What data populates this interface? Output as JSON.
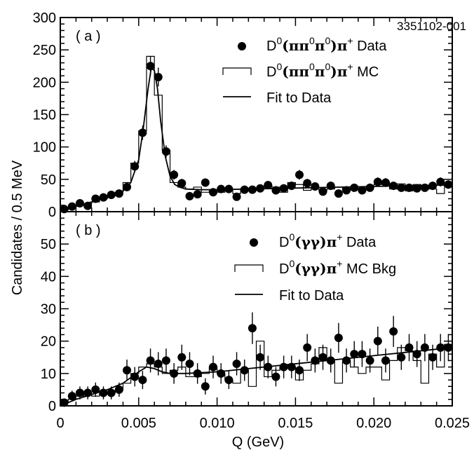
{
  "figure_id": "3351102-001",
  "ylabel": "Candidates / 0.5 MeV",
  "xlabel": "Q (GeV)",
  "x_tick_labels": [
    "0",
    "0.005",
    "0.010",
    "0.015",
    "0.020",
    "0.025"
  ],
  "chart_data": [
    {
      "type": "scatter",
      "panel_label": "( a )",
      "xlim": [
        0,
        0.025
      ],
      "ylim": [
        0,
        300
      ],
      "y_tick_labels": [
        "0",
        "50",
        "100",
        "150",
        "200",
        "250",
        "300"
      ],
      "legend": {
        "data": {
          "prefix": "D",
          "sup": "0",
          "decay": "(ππ",
          "decay2": "π",
          "close": ")π",
          "plus": "+",
          "suffix": " Data"
        },
        "mc": {
          "prefix": "D",
          "sup": "0",
          "decay": "(ππ",
          "decay2": "π",
          "close": ")π",
          "plus": "+",
          "suffix": " MC"
        },
        "fit": "Fit to Data"
      },
      "series": [
        {
          "name": "D0(π0π0)π+ Data",
          "x": [
            0.00025,
            0.00075,
            0.00125,
            0.00175,
            0.00225,
            0.00275,
            0.00325,
            0.00375,
            0.00425,
            0.00475,
            0.00525,
            0.00575,
            0.00625,
            0.00675,
            0.00725,
            0.00775,
            0.00825,
            0.00875,
            0.00925,
            0.00975,
            0.01025,
            0.01075,
            0.01125,
            0.01175,
            0.01225,
            0.01275,
            0.01325,
            0.01375,
            0.01425,
            0.01475,
            0.01525,
            0.01575,
            0.01625,
            0.01675,
            0.01725,
            0.01775,
            0.01825,
            0.01875,
            0.01925,
            0.01975,
            0.02025,
            0.02075,
            0.02125,
            0.02175,
            0.02225,
            0.02275,
            0.02325,
            0.02375,
            0.02425,
            0.02475
          ],
          "y": [
            4,
            8,
            13,
            9,
            20,
            22,
            26,
            28,
            38,
            70,
            122,
            225,
            208,
            93,
            57,
            44,
            24,
            27,
            45,
            30,
            35,
            35,
            23,
            34,
            34,
            36,
            41,
            33,
            36,
            40,
            57,
            44,
            39,
            31,
            40,
            28,
            33,
            37,
            33,
            37,
            46,
            45,
            40,
            37,
            37,
            36,
            37,
            40,
            46,
            42
          ],
          "err": [
            2,
            3,
            4,
            3,
            4.5,
            5,
            5,
            5.5,
            6,
            8.5,
            11,
            15,
            14.5,
            9.5,
            7.5,
            6.5,
            5,
            5,
            6.5,
            5.5,
            6,
            6,
            5,
            6,
            6,
            6,
            6.5,
            6,
            6,
            6.5,
            7.5,
            6.5,
            6,
            5.5,
            6.5,
            5.5,
            6,
            6,
            6,
            6,
            7,
            7,
            6.5,
            6,
            6,
            6,
            6,
            6.5,
            7,
            6.5
          ]
        },
        {
          "name": "D0(π0π0)π+ MC",
          "edges_start": 0.0,
          "bin_width": 0.0005,
          "values": [
            3,
            5,
            10,
            12,
            15,
            20,
            25,
            30,
            45,
            75,
            125,
            240,
            180,
            95,
            45,
            38,
            35,
            38,
            30,
            32,
            30,
            35,
            28,
            35,
            33,
            35,
            40,
            38,
            30,
            45,
            42,
            33,
            35,
            32,
            35,
            38,
            33,
            36,
            33,
            38,
            42,
            45,
            35,
            43,
            32,
            42,
            38,
            35,
            28,
            40
          ]
        },
        {
          "name": "Fit to Data",
          "x": [
            0,
            0.001,
            0.002,
            0.003,
            0.0035,
            0.004,
            0.0045,
            0.005,
            0.0053,
            0.0056,
            0.0058,
            0.006,
            0.0062,
            0.0064,
            0.0067,
            0.007,
            0.0073,
            0.0076,
            0.008,
            0.009,
            0.01,
            0.012,
            0.014,
            0.016,
            0.018,
            0.02,
            0.022,
            0.024,
            0.025
          ],
          "y": [
            0,
            8,
            15,
            22,
            25,
            32,
            45,
            80,
            130,
            190,
            222,
            218,
            190,
            140,
            85,
            55,
            42,
            38,
            35,
            34,
            34,
            35,
            36,
            37,
            38,
            39,
            40,
            41,
            41
          ]
        }
      ]
    },
    {
      "type": "scatter",
      "panel_label": "( b )",
      "xlim": [
        0,
        0.025
      ],
      "ylim": [
        0,
        60
      ],
      "y_tick_labels": [
        "0",
        "10",
        "20",
        "30",
        "40",
        "50"
      ],
      "legend": {
        "data": {
          "prefix": "D",
          "sup": "0",
          "decay": "(γγ)π",
          "plus": "+",
          "suffix": " Data"
        },
        "mc": {
          "prefix": "D",
          "sup": "0",
          "decay": "(γγ)π",
          "plus": "+",
          "suffix": " MC Bkg"
        },
        "fit": "Fit to Data"
      },
      "series": [
        {
          "name": "D0(γγ)π+ Data",
          "x": [
            0.00025,
            0.00075,
            0.00125,
            0.00175,
            0.00225,
            0.00275,
            0.00325,
            0.00375,
            0.00425,
            0.00475,
            0.00525,
            0.00575,
            0.00625,
            0.00675,
            0.00725,
            0.00775,
            0.00825,
            0.00875,
            0.00925,
            0.00975,
            0.01025,
            0.01075,
            0.01125,
            0.01175,
            0.01225,
            0.01275,
            0.01325,
            0.01375,
            0.01425,
            0.01475,
            0.01525,
            0.01575,
            0.01625,
            0.01675,
            0.01725,
            0.01775,
            0.01825,
            0.01875,
            0.01925,
            0.01975,
            0.02025,
            0.02075,
            0.02125,
            0.02175,
            0.02225,
            0.02275,
            0.02325,
            0.02375,
            0.02425,
            0.02475
          ],
          "y": [
            1,
            3,
            4,
            4,
            5,
            4,
            4,
            5,
            11,
            9,
            8,
            14,
            13,
            14,
            10,
            15,
            13,
            10,
            6,
            12,
            10,
            8,
            13,
            11,
            24,
            15,
            12,
            9,
            12,
            12,
            11,
            18,
            14,
            15,
            14,
            21,
            14,
            16,
            16,
            14,
            20,
            14,
            23,
            15,
            18,
            16,
            18,
            15,
            18,
            18
          ],
          "err": [
            1,
            1.7,
            2,
            2,
            2.2,
            2,
            2,
            2.2,
            3.3,
            3,
            2.8,
            3.7,
            3.6,
            3.7,
            3.2,
            3.9,
            3.6,
            3.2,
            2.5,
            3.5,
            3.2,
            2.8,
            3.6,
            3.3,
            4.9,
            3.9,
            3.5,
            3,
            3.5,
            3.5,
            3.3,
            4.2,
            3.7,
            3.9,
            3.7,
            4.6,
            3.7,
            4,
            4,
            3.7,
            4.5,
            3.7,
            4.8,
            3.9,
            4.2,
            4,
            4.2,
            3.9,
            4.2,
            4.2
          ]
        },
        {
          "name": "D0(γγ)π+ MC Bkg",
          "edges_start": 0.0,
          "bin_width": 0.0005,
          "values": [
            1,
            2,
            3,
            4,
            3,
            4,
            4,
            5,
            7,
            10,
            12,
            13,
            12,
            10,
            11,
            12,
            9,
            9,
            10,
            12,
            10,
            8,
            7,
            11,
            6,
            20,
            9,
            11,
            12,
            12,
            8,
            11,
            13,
            18,
            14,
            7,
            14,
            12,
            10,
            12,
            12,
            8,
            14,
            18,
            17,
            14,
            7,
            16,
            12,
            19
          ]
        },
        {
          "name": "Fit to Data",
          "x": [
            0,
            0.001,
            0.002,
            0.003,
            0.004,
            0.005,
            0.0055,
            0.006,
            0.0065,
            0.007,
            0.008,
            0.01,
            0.012,
            0.014,
            0.016,
            0.018,
            0.02,
            0.022,
            0.024,
            0.025
          ],
          "y": [
            0,
            2,
            3.5,
            5,
            7,
            10.5,
            12,
            11.5,
            10.5,
            10,
            10,
            10.5,
            11.5,
            12.5,
            13.5,
            14.5,
            15.5,
            16.5,
            17.5,
            18
          ]
        }
      ]
    }
  ]
}
